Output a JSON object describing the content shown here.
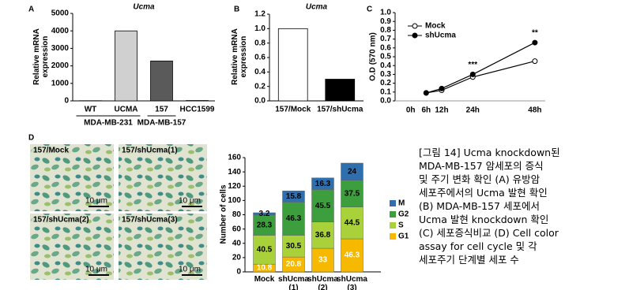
{
  "panels": [
    "A",
    "B",
    "C",
    "D"
  ],
  "chart_data": [
    {
      "type": "bar",
      "title": "Ucma",
      "ylabel": "Relative mRNA expression",
      "categories": [
        "WT",
        "UCMA",
        "157",
        "HCC1599"
      ],
      "values": [
        10,
        4000,
        2280,
        20
      ],
      "colors": [
        "#ffffff",
        "#d0d0d0",
        "#5a5a5a",
        "#ffffff"
      ],
      "groups": [
        {
          "label": "MDA-MB-231",
          "categories": [
            0,
            1
          ]
        },
        {
          "label": "MDA-MB-157",
          "categories": [
            2,
            2
          ]
        }
      ],
      "ylim": [
        0,
        5000
      ],
      "yticks": [
        0,
        1000,
        2000,
        3000,
        4000,
        5000
      ]
    },
    {
      "type": "bar",
      "title": "Ucma",
      "ylabel": "Relative mRNA expression",
      "categories": [
        "157/Mock",
        "157/shUcma"
      ],
      "values": [
        1.0,
        0.3
      ],
      "colors": [
        "#ffffff",
        "#000000"
      ],
      "ylim": [
        0,
        1.2
      ],
      "yticks": [
        {
          "value": 0,
          "label": "0.0"
        },
        0.2,
        0.4,
        0.6,
        0.8,
        {
          "value": 1,
          "label": "1.0"
        },
        1.2
      ]
    },
    {
      "type": "line",
      "ylabel": "O.D (570 nm)",
      "x": [
        6,
        12,
        24,
        48
      ],
      "series": [
        {
          "name": "Mock",
          "color": "#000000",
          "marker": "open",
          "values": [
            0.09,
            0.12,
            0.27,
            0.45
          ]
        },
        {
          "name": "shUcma",
          "color": "#000000",
          "marker": "filled",
          "values": [
            0.09,
            0.14,
            0.3,
            0.66
          ]
        }
      ],
      "annotations": [
        {
          "text": "***",
          "x": 24
        },
        {
          "text": "**",
          "x": 48
        }
      ],
      "xlim": [
        -6,
        52
      ],
      "xticks": [
        {
          "value": 0,
          "label": "0h"
        },
        {
          "value": 6,
          "label": "6h"
        },
        {
          "value": 12,
          "label": "12h"
        },
        {
          "value": 24,
          "label": "24h"
        },
        {
          "value": 48,
          "label": "48h"
        }
      ],
      "ylim": [
        0,
        1
      ],
      "yticks": [
        {
          "value": 0,
          "label": "0.0"
        },
        0.1,
        0.2,
        0.3,
        0.4,
        0.5,
        0.6,
        0.7,
        0.8,
        0.9,
        {
          "value": 1,
          "label": "1.0"
        }
      ]
    },
    {
      "type": "stacked_bar",
      "ylabel": "Number of cells",
      "categories": [
        "Mock",
        "shUcma (1)",
        "shUcma (2)",
        "shUcma (3)"
      ],
      "series": [
        {
          "name": "G1",
          "color": "#f7b800",
          "values": [
            10.8,
            20.8,
            33,
            46.3
          ]
        },
        {
          "name": "S",
          "color": "#a9d13a",
          "values": [
            40.5,
            30.5,
            36.8,
            44.5
          ]
        },
        {
          "name": "G2",
          "color": "#3c9e3c",
          "values": [
            28.3,
            46.3,
            45.5,
            37.5
          ]
        },
        {
          "name": "M",
          "color": "#2f6fae",
          "values": [
            3.2,
            15.8,
            16.3,
            24
          ]
        }
      ],
      "ylim": [
        0,
        160
      ],
      "yticks": [
        0,
        20,
        40,
        60,
        80,
        100,
        120,
        140,
        160
      ]
    }
  ],
  "micrographs": [
    {
      "label": "157/Mock",
      "scale": "10 μm"
    },
    {
      "label": "157/shUcma(1)",
      "scale": "10 μm"
    },
    {
      "label": "157/shUcma(2)",
      "scale": "10 μm"
    },
    {
      "label": "157/shUcma(3)",
      "scale": "10 μm"
    }
  ],
  "caption": [
    "[그림 14] Ucma knockdown된",
    "MDA-MB-157 암세포의 증식",
    "및 주기 변화 확인 (A) 유방암",
    "세포주에서의 Ucma 발현 확인",
    "(B) MDA-MB-157 세포에서",
    "Ucma 발현 knockdown 확인",
    "(C) 세포증식비교 (D) Cell color",
    "assay for cell cycle 및 각",
    "세포주기 단계별 세포 수"
  ]
}
